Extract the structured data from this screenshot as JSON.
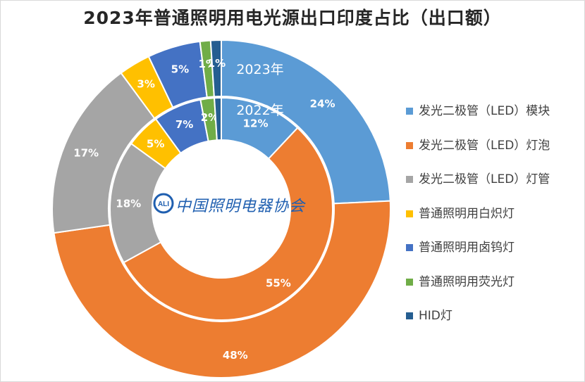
{
  "chart_data": {
    "type": "pie",
    "subtype": "donut",
    "title": "2023年普通照明用电光源出口印度占比（出口额）",
    "categories": [
      "发光二极管（LED）模块",
      "发光二极管（LED）灯泡",
      "发光二极管（LED）灯管",
      "普通照明用白炽灯",
      "普通照明用卤钨灯",
      "普通照明用荧光灯",
      "HID灯"
    ],
    "colors": [
      "#5b9bd5",
      "#ed7d31",
      "#a5a5a5",
      "#ffc000",
      "#4472c4",
      "#70ad47",
      "#255e91"
    ],
    "series": [
      {
        "name": "2023年",
        "ring": "outer",
        "values": [
          24,
          48,
          17,
          3,
          5,
          1,
          1
        ],
        "labels": [
          "24%",
          "48%",
          "17%",
          "3%",
          "5%",
          "1%",
          "1%"
        ]
      },
      {
        "name": "2022年",
        "ring": "inner",
        "values": [
          12,
          55,
          18,
          5,
          7,
          2,
          1
        ],
        "labels": [
          "12%",
          "55%",
          "18%",
          "5%",
          "7%",
          "2%",
          ""
        ]
      }
    ],
    "legend_position": "right"
  },
  "logo": {
    "mark": "ALI",
    "text": "中国照明电器协会"
  }
}
